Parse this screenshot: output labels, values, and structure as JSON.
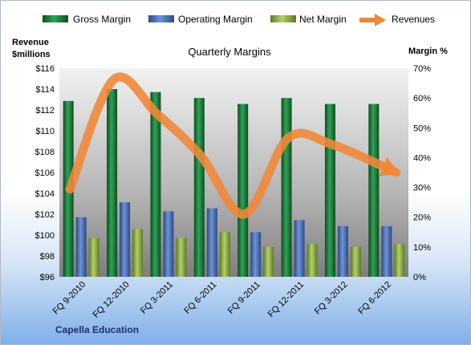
{
  "chart_data": {
    "type": "bar",
    "title": "Quarterly Margins",
    "company": "Capella Education",
    "categories": [
      "FQ 9-2010",
      "FQ 12-2010",
      "FQ 3-2011",
      "FQ 6-2011",
      "FQ 9-2011",
      "FQ 12-2011",
      "FQ 3-2012",
      "FQ 6-2012"
    ],
    "y_left": {
      "label_line1": "Revenue",
      "label_line2": "$millions",
      "range": [
        96,
        116
      ],
      "ticks": [
        "$96",
        "$98",
        "$100",
        "$102",
        "$104",
        "$106",
        "$108",
        "$110",
        "$112",
        "$114",
        "$116"
      ]
    },
    "y_right": {
      "label": "Margin %",
      "range": [
        0,
        70
      ],
      "ticks": [
        "0%",
        "10%",
        "20%",
        "30%",
        "40%",
        "50%",
        "60%",
        "70%"
      ]
    },
    "series": [
      {
        "name": "Gross Margin",
        "axis": "right",
        "kind": "bar",
        "color": "#1e7a3a",
        "values": [
          59,
          63,
          62,
          60,
          58,
          60,
          58,
          58
        ]
      },
      {
        "name": "Operating Margin",
        "axis": "right",
        "kind": "bar",
        "color": "#4a6fb5",
        "values": [
          20,
          25,
          22,
          23,
          15,
          19,
          17,
          17
        ]
      },
      {
        "name": "Net Margin",
        "axis": "right",
        "kind": "bar",
        "color": "#8fb04a",
        "values": [
          13,
          16,
          13,
          15,
          10,
          11,
          10,
          11
        ]
      },
      {
        "name": "Revenues",
        "axis": "left",
        "kind": "line-arrow",
        "color": "#f0883a",
        "values": [
          104.4,
          114.9,
          111.6,
          107.6,
          102.0,
          109.3,
          108.7,
          106.0
        ]
      }
    ],
    "legend_position": "top",
    "grid": false
  }
}
